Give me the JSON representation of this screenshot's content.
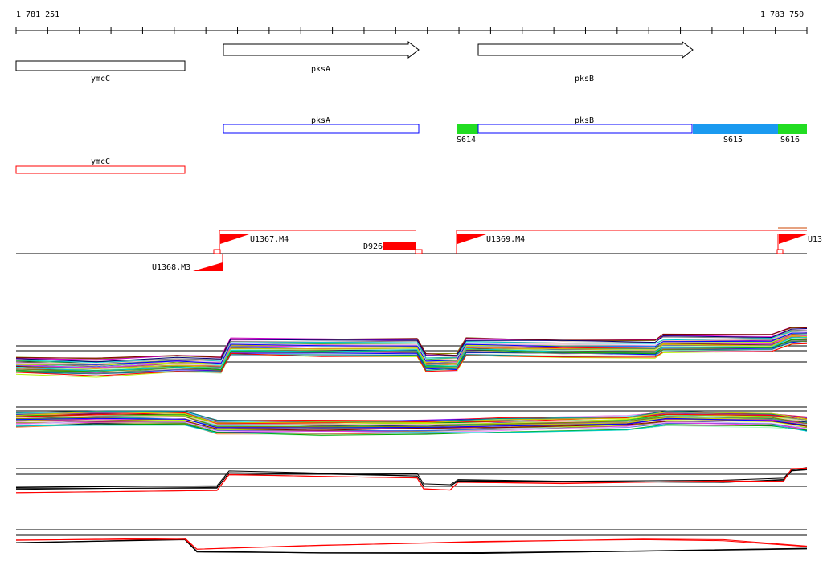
{
  "ruler": {
    "start_label": "1 781 251",
    "end_label": "1 783 750",
    "start_coord": 1781251,
    "end_coord": 1783750
  },
  "genes_strand_arrows": [
    {
      "name": "ymcC",
      "label": "ymcC",
      "start": 1781251,
      "end": 1781785,
      "strand": "-"
    },
    {
      "name": "pksA",
      "label": "pksA",
      "start": 1781905,
      "end": 1782521,
      "strand": "+"
    },
    {
      "name": "pksB",
      "label": "pksB",
      "start": 1782712,
      "end": 1783390,
      "strand": "+"
    }
  ],
  "annotations_blue": [
    {
      "label": "pksA",
      "start": 1781905,
      "end": 1782521
    },
    {
      "label": "pksB",
      "start": 1782712,
      "end": 1783390
    }
  ],
  "annotations_red": [
    {
      "label": "ymcC",
      "start": 1781251,
      "end": 1781785
    }
  ],
  "segments": [
    {
      "label": "S614",
      "start": 1782642,
      "end": 1782712,
      "color": "#22dd22"
    },
    {
      "label": "S615",
      "start": 1783390,
      "end": 1783660,
      "color": "#1a9af0"
    },
    {
      "label": "S616",
      "start": 1783660,
      "end": 1783750,
      "color": "#22dd22"
    }
  ],
  "transcription_units": [
    {
      "label": "U1367.M4",
      "start": 1781893,
      "end": 1782511,
      "strand": "+"
    },
    {
      "label": "U1368.M3",
      "start": 1781905,
      "end": 1781905,
      "strand": "-"
    },
    {
      "label": "U1369.M4",
      "start": 1782642,
      "end": 1783660,
      "strand": "+"
    },
    {
      "label": "U13",
      "start": 1783660,
      "end": 1783750,
      "strand": "+"
    }
  ],
  "features": [
    {
      "label": "D926",
      "start": 1782418,
      "end": 1782521,
      "color": "#ff0000"
    }
  ],
  "colors": {
    "gene_outline": "#000000",
    "blue_outline": "#0000ff",
    "red": "#ff0000",
    "green": "#22dd22",
    "blue_fill": "#1a9af0"
  },
  "expression_panels": [
    {
      "name": "all-conditions-plus",
      "many_lines": true
    },
    {
      "name": "all-conditions-minus",
      "many_lines": true
    },
    {
      "name": "summary-plus",
      "many_lines": false
    },
    {
      "name": "summary-minus",
      "many_lines": false
    }
  ]
}
